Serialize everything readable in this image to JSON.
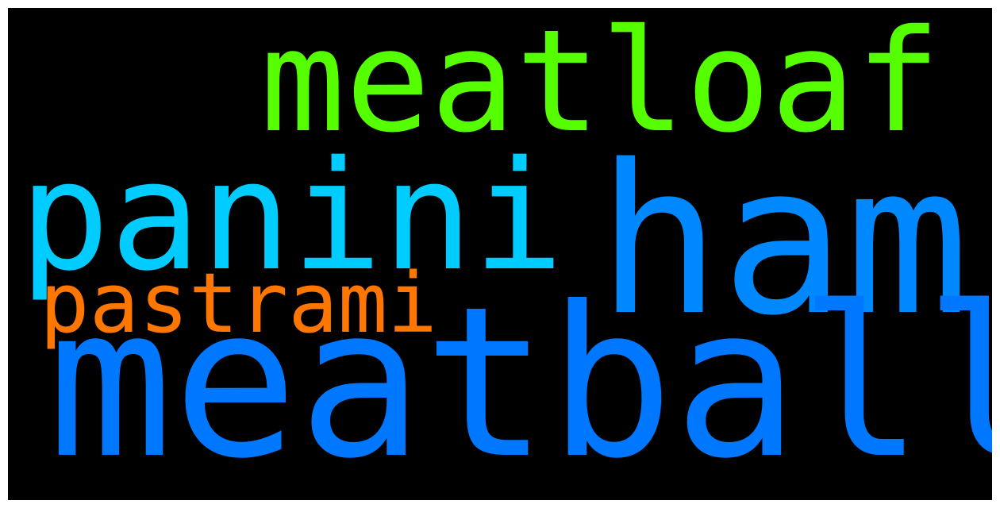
{
  "words": [
    {
      "text": "meatloaf",
      "color": "#55ff00"
    },
    {
      "text": "panini",
      "color": "#00ccff"
    },
    {
      "text": "ham",
      "color": "#0088ff"
    },
    {
      "text": "pastrami",
      "color": "#ff7700"
    },
    {
      "text": "meatball",
      "color": "#0077ff"
    }
  ]
}
